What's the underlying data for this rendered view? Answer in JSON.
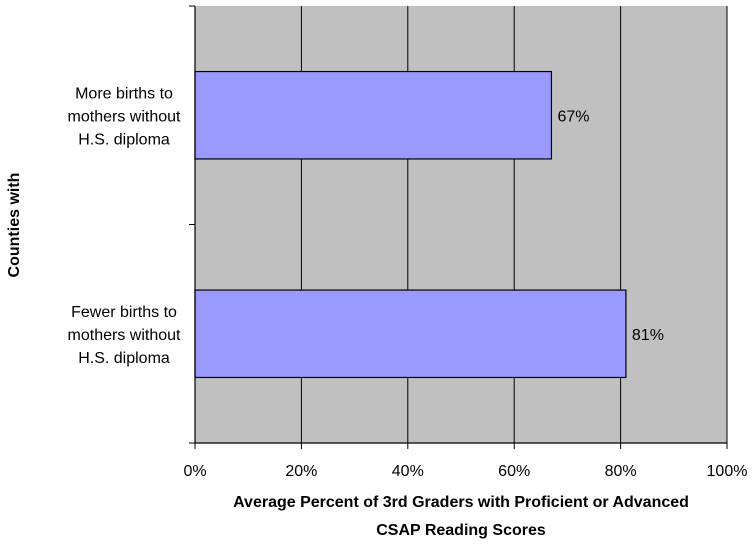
{
  "chart_data": {
    "type": "bar",
    "orientation": "horizontal",
    "categories": [
      [
        "More births to",
        "mothers without",
        "H.S. diploma"
      ],
      [
        "Fewer births to",
        "mothers without",
        "H.S. diploma"
      ]
    ],
    "values": [
      67,
      81
    ],
    "data_labels": [
      "67%",
      "81%"
    ],
    "xlim": [
      0,
      100
    ],
    "xticks": [
      0,
      20,
      40,
      60,
      80,
      100
    ],
    "xtick_labels": [
      "0%",
      "20%",
      "40%",
      "60%",
      "80%",
      "100%"
    ],
    "xlabel_lines": [
      "Average Percent of 3rd Graders with Proficient or Advanced",
      "CSAP Reading Scores"
    ],
    "ylabel": "Counties with",
    "grid": "vertical",
    "legend": "none",
    "colors": {
      "bar_fill": "#9999ff",
      "bar_stroke": "#000000",
      "plot_background": "#c0c0c0",
      "gridline": "#000000"
    }
  }
}
